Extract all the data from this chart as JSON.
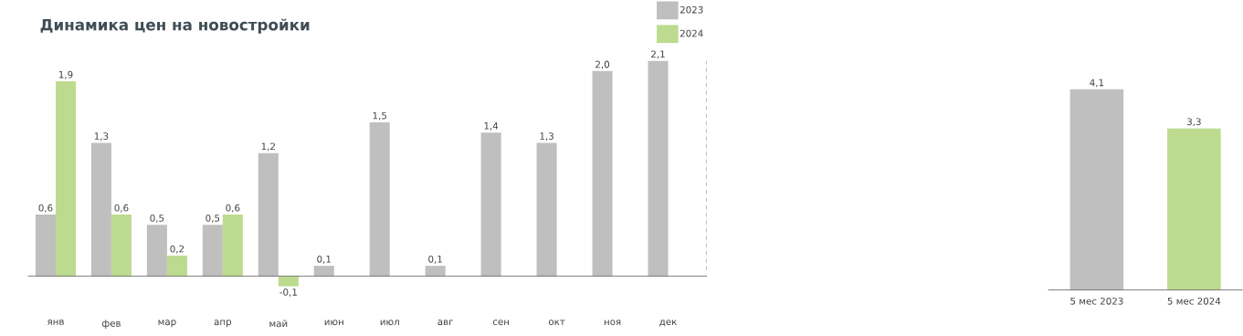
{
  "chart_data": [
    {
      "type": "bar",
      "title": "Динамика цен на новостройки",
      "categories": [
        "янв",
        "фев",
        "мар",
        "апр",
        "май",
        "июн",
        "июл",
        "авг",
        "сен",
        "окт",
        "ноя",
        "дек"
      ],
      "series": [
        {
          "name": "2023",
          "color": "#bfbfbf",
          "values": [
            0.6,
            1.3,
            0.5,
            0.5,
            1.2,
            0.1,
            1.5,
            0.1,
            1.4,
            1.3,
            2.0,
            2.1
          ],
          "value_labels": [
            "0,6",
            "1,3",
            "0,5",
            "0,5",
            "1,2",
            "0,1",
            "1,5",
            "0,1",
            "1,4",
            "1,3",
            "2,0",
            "2,1"
          ]
        },
        {
          "name": "2024",
          "color": "#bddb8f",
          "values": [
            1.9,
            0.6,
            0.2,
            0.6,
            -0.1,
            null,
            null,
            null,
            null,
            null,
            null,
            null
          ],
          "value_labels": [
            "1,9",
            "0,6",
            "0,2",
            "0,6",
            "-0,1",
            null,
            null,
            null,
            null,
            null,
            null,
            null
          ]
        }
      ],
      "legend": "top right"
    },
    {
      "type": "bar",
      "categories": [
        "5 мес 2023",
        "5 мес 2024"
      ],
      "values": [
        4.1,
        3.3
      ],
      "colors": [
        "#bfbfbf",
        "#bddb8f"
      ],
      "value_labels": [
        "4,1",
        "3,3"
      ]
    }
  ]
}
